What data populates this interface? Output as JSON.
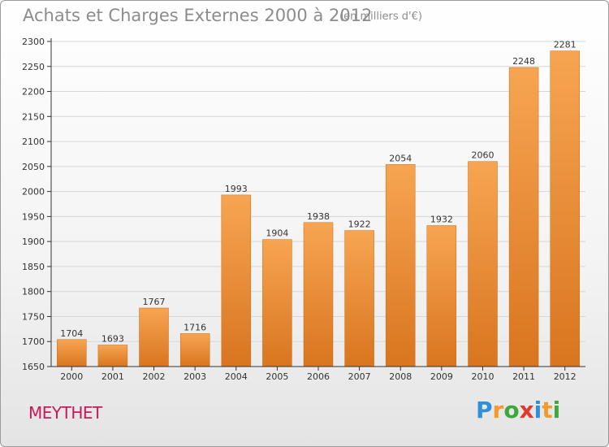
{
  "header": {
    "title": "Achats et Charges Externes 2000 à 2012",
    "unit": "(en milliers d'€)"
  },
  "footer": {
    "commune": "MEYTHET",
    "brand_letters": [
      {
        "char": "P",
        "color": "#2f8fd8"
      },
      {
        "char": "r",
        "color": "#f39a2a"
      },
      {
        "char": "o",
        "color": "#3aa93a"
      },
      {
        "char": "x",
        "color": "#e03a2a"
      },
      {
        "char": "i",
        "color": "#2f8fd8"
      },
      {
        "char": "t",
        "color": "#f39a2a"
      },
      {
        "char": "i",
        "color": "#3aa93a"
      }
    ]
  },
  "chart_data": {
    "type": "bar",
    "categories": [
      "2000",
      "2001",
      "2002",
      "2003",
      "2004",
      "2005",
      "2006",
      "2007",
      "2008",
      "2009",
      "2010",
      "2011",
      "2012"
    ],
    "values": [
      1704,
      1693,
      1767,
      1716,
      1993,
      1904,
      1938,
      1922,
      2054,
      1932,
      2060,
      2248,
      2281
    ],
    "ylim": [
      1650,
      2300
    ],
    "yticks": [
      1650,
      1700,
      1750,
      1800,
      1850,
      1900,
      1950,
      2000,
      2050,
      2100,
      2150,
      2200,
      2250,
      2300
    ],
    "grid": true,
    "colors": {
      "bar_top": "#f7a552",
      "bar_bottom": "#d9751f",
      "grid": "#d6d6d6",
      "axis": "#333333"
    }
  }
}
